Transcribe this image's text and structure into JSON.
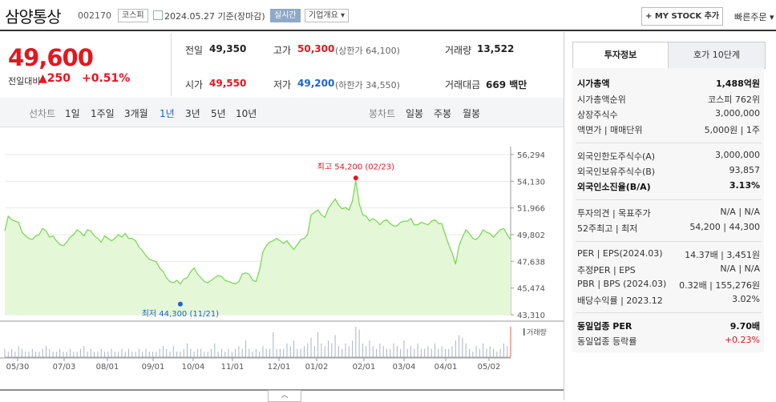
{
  "header": {
    "stock_name": "삼양통상",
    "stock_code": "002170",
    "market": "코스피",
    "date": "2024.05.27 기준(장마감)",
    "realtime_label": "실시간",
    "company_overview_label": "기업개요 ▾",
    "my_stock_label": "+ MY STOCK 추가",
    "quick_order_label": "빠른주문 ▾"
  },
  "price": {
    "current": "49,600",
    "change_label": "전일대비",
    "change": "▲250",
    "change_pct": "+0.51%"
  },
  "quote": {
    "prev_close_label": "전일",
    "prev_close": "49,350",
    "high_label": "고가",
    "high": "50,300",
    "upper_limit": "(상한가 64,100)",
    "volume_label": "거래량",
    "volume": "13,522",
    "open_label": "시가",
    "open": "49,550",
    "low_label": "저가",
    "low": "49,200",
    "lower_limit": "(하한가 34,550)",
    "value_label": "거래대금",
    "value": "669 백만"
  },
  "tabs": {
    "line_chart": "선차트",
    "periods": [
      "1일",
      "1주일",
      "3개월",
      "1년",
      "3년",
      "5년",
      "10년"
    ],
    "active_period": "1년",
    "candle_chart": "봉차트",
    "candle_periods": [
      "일봉",
      "주봉",
      "월봉"
    ]
  },
  "colors": {
    "up": "#e4161f",
    "down": "#1e63c8",
    "line": "#7ed957",
    "fill": "#e4f8d8"
  },
  "chart_data": {
    "type": "area",
    "ylim": [
      43310,
      56294
    ],
    "y_ticks": [
      "56,294",
      "54,130",
      "51,966",
      "49,802",
      "47,638",
      "45,474",
      "43,310"
    ],
    "x_ticks": [
      "05/30",
      "07/03",
      "08/01",
      "09/01",
      "10/04",
      "11/01",
      "12/01",
      "01/02",
      "02/01",
      "03/04",
      "04/01",
      "05/02"
    ],
    "high_label": "최고 54,200 (02/23)",
    "low_label": "최저 44,300 (11/21)",
    "volume_legend": "거래량",
    "prices": [
      50100,
      51300,
      51000,
      50900,
      50800,
      50000,
      49700,
      49500,
      49400,
      49700,
      49800,
      50300,
      50100,
      49600,
      49700,
      49300,
      49000,
      48900,
      49200,
      49600,
      49800,
      50200,
      50000,
      49700,
      50200,
      50100,
      49700,
      49500,
      49200,
      49700,
      49500,
      49300,
      49500,
      49800,
      49600,
      49900,
      49500,
      49500,
      49300,
      48800,
      48500,
      48100,
      47800,
      47700,
      47600,
      47100,
      46800,
      46300,
      46000,
      45900,
      46100,
      45800,
      46200,
      46300,
      46800,
      47100,
      46600,
      46300,
      46000,
      45900,
      46100,
      46300,
      46500,
      46400,
      46100,
      46000,
      45900,
      45800,
      46000,
      46600,
      46700,
      46600,
      46100,
      46000,
      46900,
      48400,
      48900,
      49200,
      49300,
      49500,
      49300,
      49100,
      49300,
      48900,
      48600,
      49000,
      49400,
      49500,
      49800,
      51400,
      51600,
      51800,
      51400,
      51200,
      51900,
      52300,
      52700,
      52200,
      51900,
      52000,
      51800,
      52500,
      54200,
      52300,
      51400,
      51300,
      50900,
      51100,
      50900,
      50600,
      50900,
      51000,
      50700,
      50500,
      50500,
      50800,
      50900,
      50900,
      51100,
      50600,
      50600,
      50800,
      50700,
      50600,
      50900,
      51000,
      50700,
      50700,
      49800,
      49000,
      48300,
      47400,
      48900,
      49600,
      50200,
      49900,
      49500,
      49400,
      49700,
      50200,
      50000,
      49900,
      49600,
      49900,
      50200,
      50300,
      49800,
      49400
    ],
    "volumes": [
      3,
      2,
      3,
      2,
      4,
      3,
      2,
      2,
      3,
      2,
      2,
      3,
      4,
      3,
      2,
      2,
      3,
      2,
      2,
      3,
      2,
      2,
      3,
      4,
      2,
      3,
      2,
      2,
      3,
      2,
      2,
      3,
      2,
      2,
      3,
      2,
      3,
      2,
      2,
      3,
      2,
      3,
      2,
      2,
      2,
      3,
      4,
      3,
      2,
      4,
      2,
      2,
      3,
      5,
      3,
      2,
      3,
      3,
      2,
      2,
      3,
      5,
      2,
      3,
      2,
      3,
      2,
      3,
      4,
      3,
      6,
      3,
      2,
      3,
      2,
      4,
      3,
      3,
      9,
      3,
      3,
      3,
      5,
      4,
      6,
      3,
      3,
      4,
      5,
      7,
      4,
      9,
      5,
      4,
      6,
      5,
      8,
      4,
      3,
      5,
      4,
      6,
      11,
      10,
      5,
      4,
      6,
      4,
      3,
      5,
      4,
      3,
      3,
      5,
      4,
      3,
      6,
      3,
      4,
      3,
      5,
      3,
      3,
      4,
      3,
      5,
      3,
      4,
      3,
      3,
      4,
      6,
      8,
      7,
      5,
      3,
      2,
      4,
      3,
      5,
      3,
      4,
      3,
      2,
      3,
      5,
      4,
      9
    ]
  },
  "info_tabs": [
    "투자정보",
    "호가 10단계"
  ],
  "info_rows": [
    {
      "label": "시가총액",
      "value": "1,488억원",
      "bold": true
    },
    {
      "label": "시가총액순위",
      "value": "코스피 762위"
    },
    {
      "label": "상장주식수",
      "value": "3,000,000"
    },
    {
      "label": "액면가 | 매매단위",
      "value": "5,000원 | 1주"
    },
    {
      "label": "외국인한도주식수(A)",
      "value": "3,000,000"
    },
    {
      "label": "외국인보유주식수(B)",
      "value": "93,857"
    },
    {
      "label": "외국인소진율(B/A)",
      "value": "3.13%",
      "bold": true
    },
    {
      "label": "투자의견 | 목표주가",
      "value": "N/A | N/A"
    },
    {
      "label": "52주최고 | 최저",
      "value": "54,200 | 44,300"
    },
    {
      "label": "PER | EPS(2024.03)",
      "value": "14.37배 | 3,451원"
    },
    {
      "label": "추정PER | EPS",
      "value": "N/A | N/A"
    },
    {
      "label": "PBR | BPS (2024.03)",
      "value": "0.32배 | 155,276원"
    },
    {
      "label": "배당수익률 | 2023.12",
      "value": "3.02%"
    },
    {
      "label": "동일업종 PER",
      "value": "9.70배",
      "bold": true
    },
    {
      "label": "동일업종 등락률",
      "value": "+0.23%"
    }
  ],
  "collapse_label": "︿"
}
